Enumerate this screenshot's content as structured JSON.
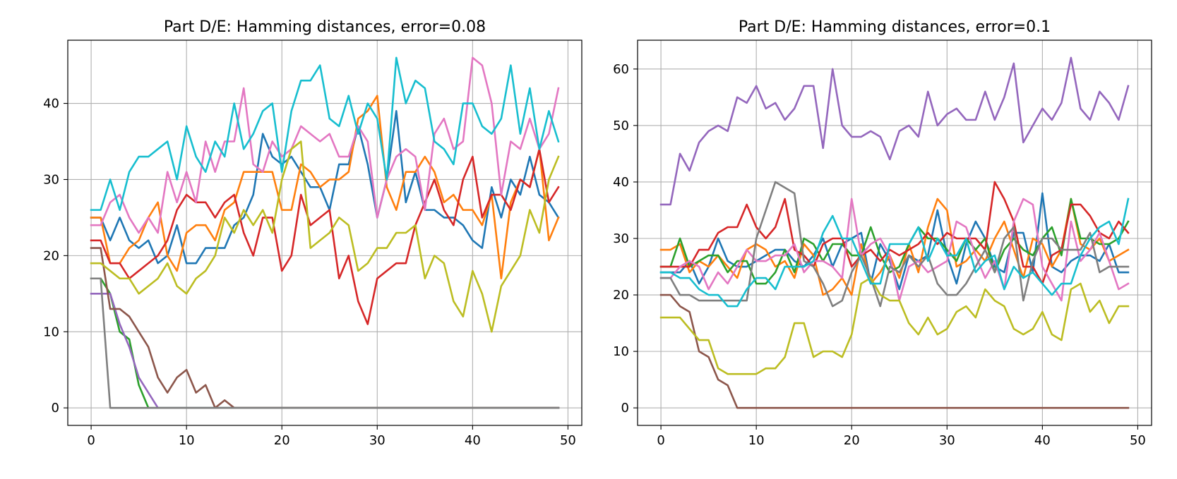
{
  "chart_data": [
    {
      "type": "line",
      "title": "Part D/E: Hamming distances, error=0.08",
      "xlabel": "",
      "ylabel": "",
      "xlim": [
        -2.45,
        51.45
      ],
      "ylim": [
        -2.3,
        48.3
      ],
      "xticks": [
        0,
        10,
        20,
        30,
        40,
        50
      ],
      "yticks": [
        0,
        10,
        20,
        30,
        40
      ],
      "grid": true,
      "series": [
        {
          "color": "#1f77b4",
          "y": [
            25,
            25,
            22,
            25,
            22,
            21,
            22,
            19,
            20,
            24,
            19,
            19,
            21,
            21,
            21,
            24,
            25,
            28,
            36,
            33,
            32,
            33,
            31,
            29,
            29,
            26,
            32,
            32,
            37,
            32,
            25,
            30,
            39,
            27,
            31,
            26,
            26,
            25,
            25,
            24,
            22,
            21,
            29,
            25,
            30,
            28,
            33,
            28,
            27,
            25
          ]
        },
        {
          "color": "#ff7f0e",
          "y": [
            25,
            25,
            19,
            19,
            21,
            22,
            25,
            27,
            20,
            18,
            23,
            24,
            24,
            22,
            26,
            27,
            31,
            31,
            31,
            31,
            26,
            26,
            32,
            31,
            29,
            30,
            30,
            31,
            38,
            39,
            41,
            29,
            26,
            31,
            31,
            33,
            31,
            27,
            28,
            26,
            26,
            24,
            28,
            17,
            27,
            30,
            29,
            34,
            22,
            25
          ]
        },
        {
          "color": "#2ca02c",
          "y": [
            17,
            17,
            15,
            10,
            9,
            3,
            0,
            0,
            0,
            0,
            0,
            0,
            0,
            0,
            0,
            0,
            0,
            0,
            0,
            0,
            0,
            0,
            0,
            0,
            0,
            0,
            0,
            0,
            0,
            0,
            0,
            0,
            0,
            0,
            0,
            0,
            0,
            0,
            0,
            0,
            0,
            0,
            0,
            0,
            0,
            0,
            0,
            0,
            0,
            0
          ]
        },
        {
          "color": "#d62728",
          "y": [
            22,
            22,
            19,
            19,
            17,
            18,
            19,
            20,
            22,
            26,
            28,
            27,
            27,
            25,
            27,
            28,
            23,
            20,
            25,
            25,
            18,
            20,
            28,
            24,
            25,
            26,
            17,
            20,
            14,
            11,
            17,
            18,
            19,
            19,
            24,
            27,
            30,
            26,
            24,
            30,
            33,
            25,
            28,
            28,
            26,
            30,
            29,
            34,
            27,
            29
          ]
        },
        {
          "color": "#9467bd",
          "y": [
            15,
            15,
            15,
            11,
            8,
            4,
            2,
            0,
            0,
            0,
            0,
            0,
            0,
            0,
            0,
            0,
            0,
            0,
            0,
            0,
            0,
            0,
            0,
            0,
            0,
            0,
            0,
            0,
            0,
            0,
            0,
            0,
            0,
            0,
            0,
            0,
            0,
            0,
            0,
            0,
            0,
            0,
            0,
            0,
            0,
            0,
            0,
            0,
            0,
            0
          ]
        },
        {
          "color": "#8c564b",
          "y": [
            21,
            21,
            13,
            13,
            12,
            10,
            8,
            4,
            2,
            4,
            5,
            2,
            3,
            0,
            1,
            0,
            0,
            0,
            0,
            0,
            0,
            0,
            0,
            0,
            0,
            0,
            0,
            0,
            0,
            0,
            0,
            0,
            0,
            0,
            0,
            0,
            0,
            0,
            0,
            0,
            0,
            0,
            0,
            0,
            0,
            0,
            0,
            0,
            0,
            0
          ]
        },
        {
          "color": "#e377c2",
          "y": [
            24,
            24,
            27,
            28,
            25,
            23,
            25,
            23,
            31,
            27,
            31,
            27,
            35,
            31,
            35,
            35,
            42,
            32,
            31,
            35,
            33,
            34,
            37,
            36,
            35,
            36,
            33,
            33,
            37,
            35,
            25,
            30,
            33,
            34,
            33,
            26,
            36,
            38,
            34,
            35,
            46,
            45,
            40,
            28,
            35,
            34,
            38,
            34,
            36,
            42
          ]
        },
        {
          "color": "#7f7f7f",
          "y": [
            17,
            17,
            0,
            0,
            0,
            0,
            0,
            0,
            0,
            0,
            0,
            0,
            0,
            0,
            0,
            0,
            0,
            0,
            0,
            0,
            0,
            0,
            0,
            0,
            0,
            0,
            0,
            0,
            0,
            0,
            0,
            0,
            0,
            0,
            0,
            0,
            0,
            0,
            0,
            0,
            0,
            0,
            0,
            0,
            0,
            0,
            0,
            0,
            0,
            0
          ]
        },
        {
          "color": "#bcbd22",
          "y": [
            19,
            19,
            18,
            17,
            17,
            15,
            16,
            17,
            19,
            16,
            15,
            17,
            18,
            20,
            25,
            23,
            26,
            24,
            26,
            23,
            30,
            34,
            35,
            21,
            22,
            23,
            25,
            24,
            18,
            19,
            21,
            21,
            23,
            23,
            24,
            17,
            20,
            19,
            14,
            12,
            18,
            15,
            10,
            16,
            18,
            20,
            26,
            23,
            30,
            33
          ]
        },
        {
          "color": "#17becf",
          "y": [
            26,
            26,
            30,
            26,
            31,
            33,
            33,
            34,
            35,
            30,
            37,
            33,
            31,
            35,
            33,
            40,
            34,
            36,
            39,
            40,
            31,
            39,
            43,
            43,
            45,
            38,
            37,
            41,
            36,
            40,
            38,
            30,
            46,
            40,
            43,
            42,
            35,
            34,
            32,
            40,
            40,
            37,
            36,
            38,
            45,
            36,
            42,
            34,
            39,
            35
          ]
        }
      ]
    },
    {
      "type": "line",
      "title": "Part D/E: Hamming distances, error=0.1",
      "xlabel": "",
      "ylabel": "",
      "xlim": [
        -2.45,
        51.45
      ],
      "ylim": [
        -3.1,
        65.1
      ],
      "xticks": [
        0,
        10,
        20,
        30,
        40,
        50
      ],
      "yticks": [
        0,
        10,
        20,
        30,
        40,
        50,
        60
      ],
      "grid": true,
      "series": [
        {
          "color": "#1f77b4",
          "y": [
            24,
            24,
            24,
            26,
            22,
            25,
            30,
            26,
            25,
            25,
            26,
            27,
            28,
            28,
            26,
            25,
            27,
            30,
            25,
            29,
            30,
            31,
            22,
            29,
            26,
            21,
            27,
            26,
            27,
            35,
            27,
            22,
            29,
            33,
            30,
            25,
            24,
            31,
            31,
            24,
            38,
            25,
            24,
            26,
            27,
            27,
            26,
            29,
            24,
            24
          ]
        },
        {
          "color": "#ff7f0e",
          "y": [
            28,
            28,
            29,
            24,
            26,
            25,
            27,
            25,
            23,
            28,
            29,
            28,
            25,
            26,
            23,
            29,
            27,
            20,
            21,
            23,
            20,
            29,
            22,
            24,
            27,
            23,
            29,
            24,
            32,
            37,
            35,
            25,
            26,
            28,
            26,
            30,
            33,
            28,
            23,
            30,
            29,
            25,
            28,
            37,
            29,
            28,
            30,
            26,
            27,
            28
          ]
        },
        {
          "color": "#2ca02c",
          "y": [
            25,
            25,
            30,
            25,
            26,
            27,
            27,
            24,
            26,
            26,
            22,
            22,
            24,
            28,
            24,
            30,
            29,
            26,
            29,
            29,
            27,
            27,
            32,
            27,
            24,
            25,
            29,
            32,
            30,
            30,
            28,
            26,
            30,
            28,
            30,
            24,
            28,
            30,
            28,
            27,
            30,
            32,
            27,
            37,
            30,
            30,
            29,
            29,
            30,
            33
          ]
        },
        {
          "color": "#d62728",
          "y": [
            25,
            25,
            25,
            25,
            28,
            28,
            31,
            32,
            32,
            36,
            32,
            30,
            32,
            37,
            28,
            27,
            25,
            29,
            30,
            30,
            25,
            27,
            28,
            26,
            28,
            27,
            28,
            29,
            31,
            29,
            31,
            30,
            30,
            30,
            28,
            40,
            37,
            33,
            25,
            25,
            22,
            27,
            28,
            36,
            36,
            34,
            31,
            30,
            33,
            31
          ]
        },
        {
          "color": "#9467bd",
          "y": [
            36,
            36,
            45,
            42,
            47,
            49,
            50,
            49,
            55,
            54,
            57,
            53,
            54,
            51,
            53,
            57,
            57,
            46,
            60,
            50,
            48,
            48,
            49,
            48,
            44,
            49,
            50,
            48,
            56,
            50,
            52,
            53,
            51,
            51,
            56,
            51,
            55,
            61,
            47,
            50,
            53,
            51,
            54,
            62,
            53,
            51,
            56,
            54,
            51,
            57
          ]
        },
        {
          "color": "#8c564b",
          "y": [
            20,
            20,
            18,
            17,
            10,
            9,
            5,
            4,
            0,
            0,
            0,
            0,
            0,
            0,
            0,
            0,
            0,
            0,
            0,
            0,
            0,
            0,
            0,
            0,
            0,
            0,
            0,
            0,
            0,
            0,
            0,
            0,
            0,
            0,
            0,
            0,
            0,
            0,
            0,
            0,
            0,
            0,
            0,
            0,
            0,
            0,
            0,
            0,
            0,
            0
          ]
        },
        {
          "color": "#e377c2",
          "y": [
            23,
            23,
            25,
            26,
            25,
            21,
            24,
            22,
            25,
            28,
            26,
            26,
            27,
            27,
            29,
            24,
            26,
            26,
            25,
            23,
            37,
            27,
            29,
            30,
            27,
            19,
            25,
            26,
            24,
            25,
            26,
            33,
            32,
            27,
            23,
            26,
            21,
            33,
            37,
            36,
            25,
            22,
            19,
            33,
            26,
            28,
            31,
            26,
            21,
            22
          ]
        },
        {
          "color": "#7f7f7f",
          "y": [
            23,
            23,
            20,
            20,
            19,
            19,
            19,
            19,
            19,
            19,
            30,
            35,
            40,
            39,
            38,
            26,
            25,
            22,
            18,
            19,
            24,
            27,
            23,
            18,
            25,
            24,
            27,
            25,
            27,
            22,
            20,
            20,
            22,
            25,
            28,
            24,
            30,
            32,
            19,
            26,
            30,
            30,
            28,
            28,
            28,
            31,
            24,
            25,
            25,
            25
          ]
        },
        {
          "color": "#bcbd22",
          "y": [
            16,
            16,
            16,
            14,
            12,
            12,
            7,
            6,
            6,
            6,
            6,
            7,
            7,
            9,
            15,
            15,
            9,
            10,
            10,
            9,
            13,
            22,
            23,
            20,
            19,
            19,
            15,
            13,
            16,
            13,
            14,
            17,
            18,
            16,
            21,
            19,
            18,
            14,
            13,
            14,
            17,
            13,
            12,
            21,
            22,
            17,
            19,
            15,
            18,
            18
          ]
        },
        {
          "color": "#17becf",
          "y": [
            24,
            24,
            23,
            23,
            21,
            20,
            20,
            18,
            18,
            21,
            23,
            23,
            21,
            25,
            25,
            25,
            26,
            31,
            34,
            30,
            30,
            26,
            22,
            22,
            29,
            29,
            29,
            32,
            26,
            30,
            27,
            27,
            30,
            24,
            26,
            27,
            21,
            25,
            23,
            24,
            22,
            20,
            22,
            22,
            27,
            30,
            32,
            33,
            29,
            37
          ]
        }
      ]
    }
  ]
}
